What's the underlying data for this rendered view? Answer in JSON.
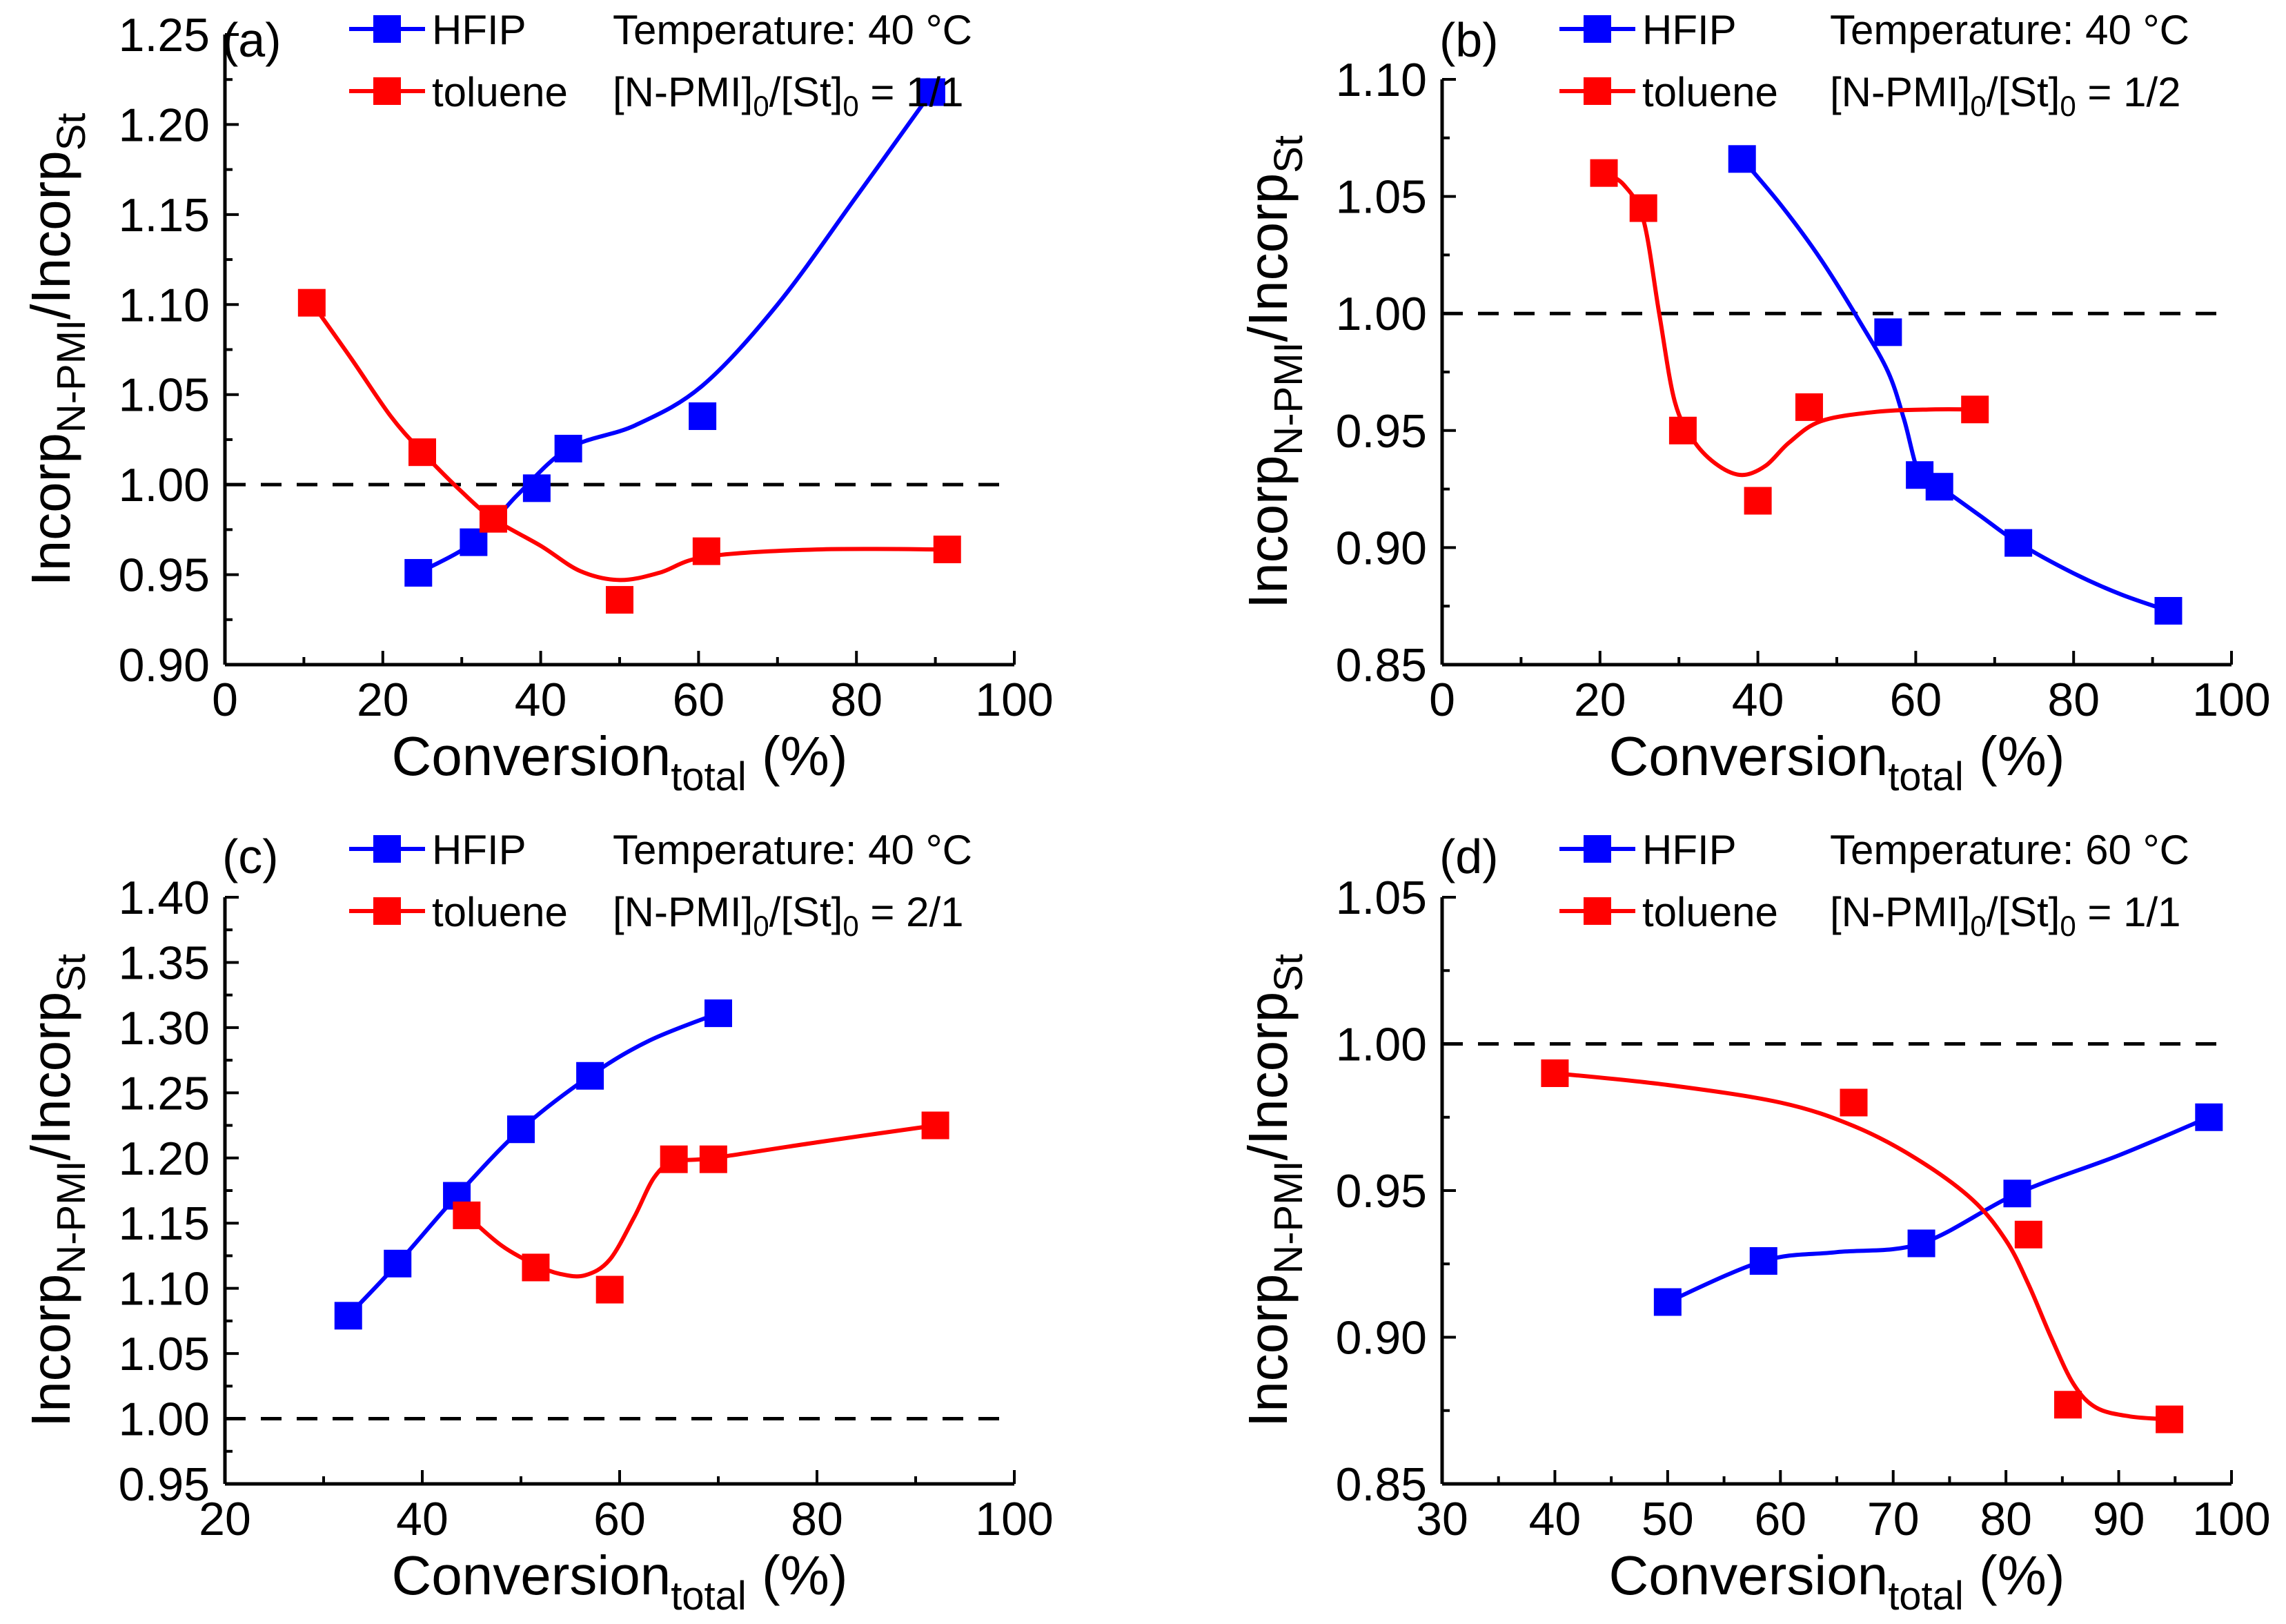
{
  "colors": {
    "hfip": "#0000ff",
    "toluene": "#ff0000",
    "axis": "#000000",
    "reference": "#000000"
  },
  "chart_data": [
    {
      "type": "line",
      "panel_label": "(a)",
      "xlabel": "Conversion",
      "xlabel_sub": "total",
      "xlabel_suffix": " (%)",
      "ylabel": "Incorp",
      "ylabel_sub1": "N-PMI",
      "ylabel_mid": "/Incorp",
      "ylabel_sub2": "St",
      "xlim": [
        0,
        100
      ],
      "ylim": [
        0.9,
        1.25
      ],
      "xticks": [
        0,
        20,
        40,
        60,
        80,
        100
      ],
      "yticks": [
        0.9,
        0.95,
        1.0,
        1.05,
        1.1,
        1.15,
        1.2,
        1.25
      ],
      "ytick_labels": [
        "0.90",
        "0.95",
        "1.00",
        "1.05",
        "1.10",
        "1.15",
        "1.20",
        "1.25"
      ],
      "reference_line": 1.0,
      "annotation_line1": "Temperature: 40 °C",
      "annotation_line2": "[N-PMI]",
      "annotation_line2_sub1": "0",
      "annotation_line2_mid": "/[St]",
      "annotation_line2_sub2": "0",
      "annotation_line2_tail": " = 1/1",
      "legend_position": "top-left",
      "series": [
        {
          "name": "HFIP",
          "color": "#0000ff",
          "x": [
            24.5,
            31.5,
            39.5,
            43.5,
            60.5,
            89.5
          ],
          "y": [
            0.951,
            0.968,
            0.998,
            1.02,
            1.038,
            1.218
          ],
          "fit_x": [
            24.5,
            31.5,
            37,
            43.5,
            52,
            60.5,
            70,
            80,
            89.5
          ],
          "fit_y": [
            0.951,
            0.968,
            0.994,
            1.02,
            1.033,
            1.055,
            1.1,
            1.16,
            1.218
          ]
        },
        {
          "name": "toluene",
          "color": "#ff0000",
          "x": [
            11,
            25,
            34,
            50,
            61,
            91.5
          ],
          "y": [
            1.101,
            1.018,
            0.981,
            0.936,
            0.963,
            0.964
          ],
          "fit_x": [
            11,
            16,
            21,
            25,
            30,
            34,
            40,
            45,
            50,
            55,
            61,
            75,
            91.5
          ],
          "fit_y": [
            1.101,
            1.07,
            1.038,
            1.018,
            0.996,
            0.981,
            0.966,
            0.952,
            0.947,
            0.951,
            0.96,
            0.964,
            0.964
          ]
        }
      ]
    },
    {
      "type": "line",
      "panel_label": "(b)",
      "xlabel": "Conversion",
      "xlabel_sub": "total",
      "xlabel_suffix": " (%)",
      "ylabel": "Incorp",
      "ylabel_sub1": "N-PMI",
      "ylabel_mid": "/Incorp",
      "ylabel_sub2": "St",
      "xlim": [
        0,
        100
      ],
      "ylim": [
        0.85,
        1.1
      ],
      "xticks": [
        0,
        20,
        40,
        60,
        80,
        100
      ],
      "yticks": [
        0.85,
        0.9,
        0.95,
        1.0,
        1.05,
        1.1
      ],
      "ytick_labels": [
        "0.85",
        "0.90",
        "0.95",
        "1.00",
        "1.05",
        "1.10"
      ],
      "reference_line": 1.0,
      "annotation_line1": "Temperature: 40 °C",
      "annotation_line2": "[N-PMI]",
      "annotation_line2_sub1": "0",
      "annotation_line2_mid": "/[St]",
      "annotation_line2_sub2": "0",
      "annotation_line2_tail": " = 1/2",
      "legend_position": "top-left",
      "series": [
        {
          "name": "HFIP",
          "color": "#0000ff",
          "x": [
            38,
            56.5,
            60.5,
            63,
            73,
            92
          ],
          "y": [
            1.066,
            0.992,
            0.931,
            0.926,
            0.902,
            0.873
          ],
          "fit_x": [
            38,
            43,
            48,
            53,
            56.5,
            58.5,
            60.5,
            63,
            68,
            73,
            80,
            86,
            92
          ],
          "fit_y": [
            1.066,
            1.046,
            1.023,
            0.996,
            0.975,
            0.955,
            0.931,
            0.926,
            0.914,
            0.902,
            0.889,
            0.88,
            0.873
          ]
        },
        {
          "name": "toluene",
          "color": "#ff0000",
          "x": [
            20.5,
            25.5,
            30.5,
            40,
            46.5,
            67.5
          ],
          "y": [
            1.06,
            1.045,
            0.95,
            0.92,
            0.96,
            0.959
          ],
          "fit_x": [
            20.5,
            23,
            25.5,
            27.5,
            29.5,
            32,
            35,
            38,
            41,
            44,
            48,
            55,
            62,
            67.5
          ],
          "fit_y": [
            1.06,
            1.055,
            1.04,
            1.0,
            0.962,
            0.945,
            0.935,
            0.931,
            0.935,
            0.945,
            0.954,
            0.958,
            0.959,
            0.959
          ]
        }
      ]
    },
    {
      "type": "line",
      "panel_label": "(c)",
      "xlabel": "Conversion",
      "xlabel_sub": "total",
      "xlabel_suffix": " (%)",
      "ylabel": "Incorp",
      "ylabel_sub1": "N-PMI",
      "ylabel_mid": "/Incorp",
      "ylabel_sub2": "St",
      "xlim": [
        20,
        100
      ],
      "ylim": [
        0.95,
        1.4
      ],
      "xticks": [
        20,
        40,
        60,
        80,
        100
      ],
      "yticks": [
        0.95,
        1.0,
        1.05,
        1.1,
        1.15,
        1.2,
        1.25,
        1.3,
        1.35,
        1.4
      ],
      "ytick_labels": [
        "0.95",
        "1.00",
        "1.05",
        "1.10",
        "1.15",
        "1.20",
        "1.25",
        "1.30",
        "1.35",
        "1.40"
      ],
      "reference_line": 1.0,
      "annotation_line1": "Temperature: 40 °C",
      "annotation_line2": "[N-PMI]",
      "annotation_line2_sub1": "0",
      "annotation_line2_mid": "/[St]",
      "annotation_line2_sub2": "0",
      "annotation_line2_tail": " = 2/1",
      "legend_position": "top-left",
      "series": [
        {
          "name": "HFIP",
          "color": "#0000ff",
          "x": [
            32.5,
            37.5,
            43.5,
            50,
            57,
            70
          ],
          "y": [
            1.079,
            1.119,
            1.171,
            1.222,
            1.263,
            1.311
          ],
          "fit_x": [
            32.5,
            37.5,
            43.5,
            50,
            57,
            63,
            70
          ],
          "fit_y": [
            1.079,
            1.119,
            1.171,
            1.222,
            1.263,
            1.29,
            1.311
          ]
        },
        {
          "name": "toluene",
          "color": "#ff0000",
          "x": [
            44.5,
            51.5,
            59,
            65.5,
            69.5,
            92
          ],
          "y": [
            1.156,
            1.116,
            1.099,
            1.199,
            1.199,
            1.225
          ],
          "fit_x": [
            44.5,
            48,
            51.5,
            54,
            56.5,
            59,
            61.5,
            63.5,
            65.5,
            69.5,
            80,
            92
          ],
          "fit_y": [
            1.156,
            1.133,
            1.118,
            1.111,
            1.11,
            1.122,
            1.155,
            1.185,
            1.197,
            1.2,
            1.212,
            1.225
          ]
        }
      ]
    },
    {
      "type": "line",
      "panel_label": "(d)",
      "xlabel": "Conversion",
      "xlabel_sub": "total",
      "xlabel_suffix": " (%)",
      "ylabel": "Incorp",
      "ylabel_sub1": "N-PMI",
      "ylabel_mid": "/Incorp",
      "ylabel_sub2": "St",
      "xlim": [
        30,
        100
      ],
      "ylim": [
        0.85,
        1.05
      ],
      "xticks": [
        30,
        40,
        50,
        60,
        70,
        80,
        90,
        100
      ],
      "yticks": [
        0.85,
        0.9,
        0.95,
        1.0,
        1.05
      ],
      "ytick_labels": [
        "0.85",
        "0.90",
        "0.95",
        "1.00",
        "1.05"
      ],
      "reference_line": 1.0,
      "annotation_line1": "Temperature: 60 °C",
      "annotation_line2": "[N-PMI]",
      "annotation_line2_sub1": "0",
      "annotation_line2_mid": "/[St]",
      "annotation_line2_sub2": "0",
      "annotation_line2_tail": " = 1/1",
      "legend_position": "top-left",
      "series": [
        {
          "name": "HFIP",
          "color": "#0000ff",
          "x": [
            50,
            58.5,
            72.5,
            81,
            98
          ],
          "y": [
            0.912,
            0.926,
            0.932,
            0.949,
            0.975
          ],
          "fit_x": [
            50,
            58.5,
            65,
            72.5,
            81,
            90,
            98
          ],
          "fit_y": [
            0.912,
            0.926,
            0.929,
            0.932,
            0.949,
            0.962,
            0.975
          ]
        },
        {
          "name": "toluene",
          "color": "#ff0000",
          "x": [
            40,
            66.5,
            82,
            85.5,
            94.5
          ],
          "y": [
            0.99,
            0.98,
            0.935,
            0.877,
            0.872
          ],
          "fit_x": [
            40,
            50,
            60,
            66.5,
            72,
            77,
            80,
            82,
            84,
            86,
            88,
            91,
            94.5
          ],
          "fit_y": [
            0.99,
            0.986,
            0.98,
            0.972,
            0.961,
            0.947,
            0.933,
            0.918,
            0.9,
            0.884,
            0.876,
            0.873,
            0.872
          ]
        }
      ]
    }
  ]
}
